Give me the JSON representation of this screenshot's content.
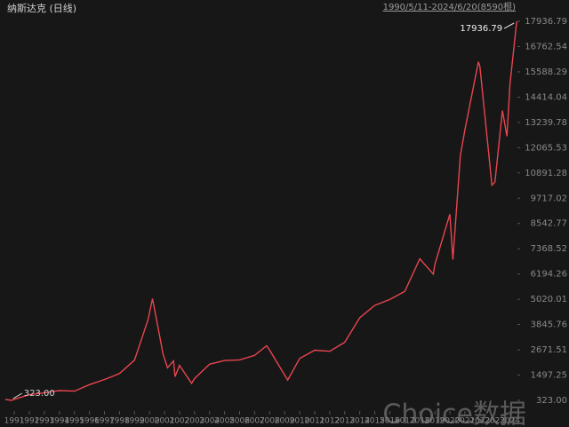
{
  "chart_data": {
    "type": "line",
    "title": "纳斯达克 (日线)",
    "subtitle": "1990/5/11-2024/6/20(8590根)",
    "annotations": [
      "17936.79",
      "323.00"
    ],
    "watermark": "Choice数据",
    "color": "#e8454f",
    "x": [
      1990.4,
      1990.8,
      1991,
      1992,
      1993,
      1994,
      1995,
      1996,
      1997,
      1998,
      1999,
      1999.9,
      2000.2,
      2000.5,
      2000.9,
      2001.2,
      2001.6,
      2001.7,
      2002,
      2002.8,
      2003,
      2004,
      2005,
      2006,
      2007,
      2007.8,
      2008,
      2009.2,
      2010,
      2011,
      2012,
      2013,
      2014,
      2015,
      2016,
      2017,
      2018,
      2018.9,
      2019,
      2020,
      2020.2,
      2020.7,
      2021,
      2021.9,
      2022,
      2022.8,
      2023,
      2023.5,
      2023.8,
      2024,
      2024.45
    ],
    "values": [
      370,
      323,
      373,
      586,
      677,
      776,
      751,
      1052,
      1291,
      1570,
      2193,
      4069,
      5048,
      3966,
      2470,
      1840,
      2160,
      1423,
      1950,
      1114,
      1335,
      2003,
      2175,
      2205,
      2415,
      2859,
      2652,
      1268,
      2269,
      2653,
      2605,
      3020,
      4160,
      4736,
      5007,
      5383,
      6903,
      6190,
      6635,
      8973,
      6860,
      11700,
      12888,
      16057,
      15832,
      10321,
      10466,
      13787,
      12595,
      15011,
      17936.79
    ],
    "xlim": [
      1990.4,
      2024.5
    ],
    "xticks": [
      1991,
      1992,
      1993,
      1994,
      1995,
      1996,
      1997,
      1998,
      1999,
      2000,
      2001,
      2002,
      2003,
      2004,
      2005,
      2006,
      2007,
      2008,
      2009,
      2010,
      2011,
      2012,
      2013,
      2014,
      2015,
      2016,
      2017,
      2018,
      2019,
      2020,
      2021,
      2022,
      2023,
      2024
    ],
    "ylim": [
      323,
      17936.79
    ],
    "yticks": [
      {
        "value": 323,
        "label": "323.00"
      },
      1497.25,
      2671.51,
      3845.76,
      5020.01,
      6194.26,
      7368.52,
      8542.77,
      9717.02,
      10891.28,
      12065.53,
      13239.78,
      14414.04,
      15588.29,
      16762.54,
      17936.79
    ]
  }
}
